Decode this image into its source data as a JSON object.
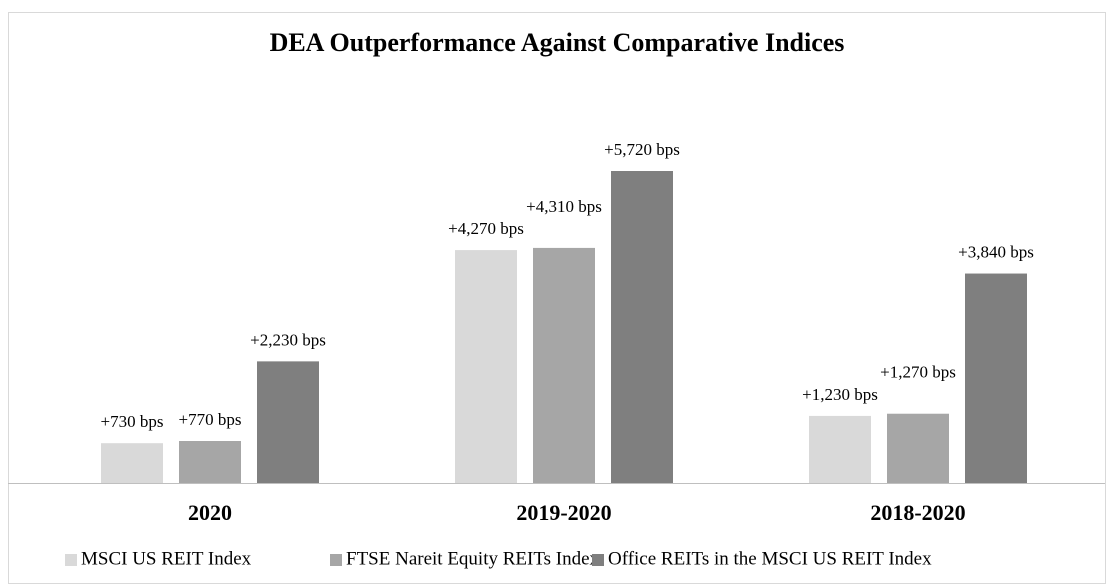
{
  "chart_data": {
    "type": "bar",
    "title": "DEA Outperformance Against Comparative Indices",
    "categories": [
      "2020",
      "2019-2020",
      "2018-2020"
    ],
    "series": [
      {
        "name": "MSCI US REIT Index",
        "color": "#d9d9d9",
        "values": [
          730,
          4270,
          1230
        ],
        "value_labels": [
          "+730 bps",
          "+4,270 bps",
          "+1,230 bps"
        ]
      },
      {
        "name": "FTSE Nareit Equity REITs Index",
        "color": "#a6a6a6",
        "values": [
          770,
          4310,
          1270
        ],
        "value_labels": [
          "+770 bps",
          "+4,310 bps",
          "+1,270 bps"
        ]
      },
      {
        "name": "Office REITs in the MSCI US REIT Index",
        "color": "#7f7f7f",
        "values": [
          2230,
          5720,
          3840
        ],
        "value_labels": [
          "+2,230 bps",
          "+5,720 bps",
          "+3,840 bps"
        ]
      }
    ],
    "legend": "bottom"
  }
}
